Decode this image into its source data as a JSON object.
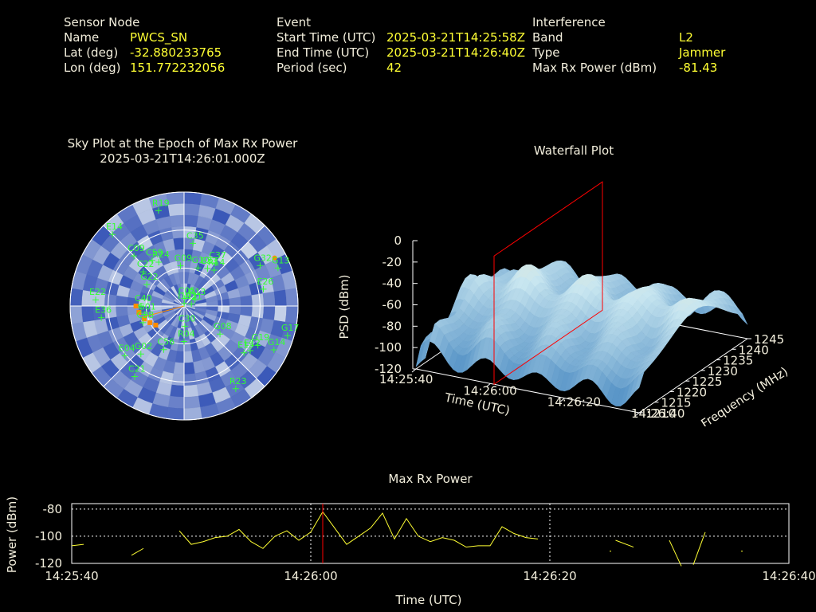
{
  "info": {
    "sensor": {
      "heading": "Sensor Node",
      "rows": [
        {
          "label": "Name",
          "value": "PWCS_SN"
        },
        {
          "label": "Lat (deg)",
          "value": "-32.880233765"
        },
        {
          "label": "Lon (deg)",
          "value": "151.772232056"
        }
      ]
    },
    "event": {
      "heading": "Event",
      "rows": [
        {
          "label": "Start Time (UTC)",
          "value": "2025-03-21T14:25:58Z"
        },
        {
          "label": "End Time (UTC)",
          "value": "2025-03-21T14:26:40Z"
        },
        {
          "label": "Period (sec)",
          "value": "42"
        }
      ]
    },
    "interference": {
      "heading": "Interference",
      "rows": [
        {
          "label": "Band",
          "value": "L2"
        },
        {
          "label": "Type",
          "value": "Jammer"
        },
        {
          "label": "Max Rx Power (dBm)",
          "value": "-81.43"
        }
      ]
    }
  },
  "colors": {
    "text": "#f2eedc",
    "value": "#ffff33",
    "satellite": "#33ff33",
    "track": "#ff8c00",
    "marker": "#ff0000",
    "sky_dark": "#3a58b8",
    "sky_light": "#dfe8f2"
  },
  "chart_data": [
    {
      "type": "scatter",
      "title": "Sky Plot at the Epoch of Max Rx Power",
      "subtitle": "2025-03-21T14:26:01.000Z",
      "satellites": [
        {
          "id": "I193",
          "az": 2,
          "el": 88
        },
        {
          "id": "C05",
          "az": 4,
          "el": 84
        },
        {
          "id": "E33",
          "az": 32,
          "el": 55
        },
        {
          "id": "R14",
          "az": 40,
          "el": 53
        },
        {
          "id": "G32",
          "az": 62,
          "el": 22
        },
        {
          "id": "G13",
          "az": 68,
          "el": 10
        },
        {
          "id": "E26",
          "az": 78,
          "el": 26
        },
        {
          "id": "G17",
          "az": 106,
          "el": 5
        },
        {
          "id": "G14",
          "az": 116,
          "el": 11
        },
        {
          "id": "G19",
          "az": 118,
          "el": 24
        },
        {
          "id": "E12",
          "az": 124,
          "el": 27
        },
        {
          "id": "E15",
          "az": 128,
          "el": 30
        },
        {
          "id": "R23",
          "az": 148,
          "el": 13
        },
        {
          "id": "R13",
          "az": 60,
          "el": 80
        },
        {
          "id": "R21",
          "az": 75,
          "el": 84
        },
        {
          "id": "G08",
          "az": 128,
          "el": 54
        },
        {
          "id": "R04",
          "az": 180,
          "el": 62
        },
        {
          "id": "C30",
          "az": 178,
          "el": 74
        },
        {
          "id": "C56",
          "az": 205,
          "el": 52
        },
        {
          "id": "E04",
          "az": 230,
          "el": 29
        },
        {
          "id": "C21",
          "az": 215,
          "el": 22
        },
        {
          "id": "G02",
          "az": 222,
          "el": 39
        },
        {
          "id": "C38",
          "az": 248,
          "el": 55
        },
        {
          "id": "G01",
          "az": 258,
          "el": 58
        },
        {
          "id": "C40",
          "az": 270,
          "el": 56
        },
        {
          "id": "E22",
          "az": 274,
          "el": 20
        },
        {
          "id": "E36",
          "az": 262,
          "el": 24
        },
        {
          "id": "C09",
          "az": 315,
          "el": 34
        },
        {
          "id": "C59",
          "az": 325,
          "el": 46
        },
        {
          "id": "G22",
          "az": 300,
          "el": 56
        },
        {
          "id": "C22",
          "az": 310,
          "el": 48
        },
        {
          "id": "R24",
          "az": 330,
          "el": 50
        },
        {
          "id": "R19",
          "az": 345,
          "el": 12
        },
        {
          "id": "E14",
          "az": 315,
          "el": 10
        },
        {
          "id": "G09",
          "az": 355,
          "el": 58
        },
        {
          "id": "G10",
          "az": 20,
          "el": 58
        },
        {
          "id": "C37",
          "az": 36,
          "el": 48
        },
        {
          "id": "C35",
          "az": 8,
          "el": 40
        }
      ],
      "track": [
        {
          "az": 270,
          "el": 52
        },
        {
          "az": 262,
          "el": 54
        },
        {
          "az": 252,
          "el": 57
        },
        {
          "az": 244,
          "el": 60
        },
        {
          "az": 236,
          "el": 63
        }
      ],
      "interferer": {
        "az": 62,
        "el": 9
      }
    },
    {
      "type": "area",
      "title": "Waterfall Plot",
      "xlabel": "Time (UTC)",
      "ylabel": "Frequency (MHz)",
      "zlabel": "PSD (dBm)",
      "x_ticks": [
        "14:25:40",
        "14:26:00",
        "14:26:20",
        "14:26:40"
      ],
      "y_ticks": [
        1210,
        1215,
        1220,
        1225,
        1230,
        1235,
        1240,
        1245
      ],
      "z_ticks": [
        0,
        -20,
        -40,
        -60,
        -80,
        -100,
        -120
      ],
      "zlim": [
        -120,
        0
      ],
      "marker_time": "14:26:01"
    },
    {
      "type": "line",
      "title": "Max Rx Power",
      "xlabel": "Time (UTC)",
      "ylabel": "Power (dBm)",
      "x_ticks": [
        "14:25:40",
        "14:26:00",
        "14:26:20",
        "14:26:40"
      ],
      "y_ticks": [
        -80,
        -100,
        -120
      ],
      "ylim": [
        -120,
        -76
      ],
      "xlim_sec": [
        0,
        60
      ],
      "marker_sec": 21,
      "segments": [
        [
          [
            0,
            -107
          ],
          [
            1,
            -106
          ]
        ],
        [
          [
            5,
            -114
          ],
          [
            6,
            -109
          ]
        ],
        [
          [
            9,
            -96
          ],
          [
            10,
            -106
          ],
          [
            11,
            -104
          ],
          [
            12,
            -101
          ],
          [
            13,
            -100
          ],
          [
            14,
            -95
          ],
          [
            15,
            -104
          ],
          [
            16,
            -109
          ],
          [
            17,
            -100
          ],
          [
            18,
            -96
          ],
          [
            19,
            -103
          ],
          [
            20,
            -97
          ],
          [
            21,
            -82
          ],
          [
            22,
            -94
          ],
          [
            23,
            -106
          ],
          [
            24,
            -100
          ],
          [
            25,
            -94
          ],
          [
            26,
            -83
          ],
          [
            27,
            -102
          ],
          [
            28,
            -87
          ],
          [
            29,
            -100
          ],
          [
            30,
            -104
          ],
          [
            31,
            -101
          ],
          [
            32,
            -103
          ],
          [
            33,
            -108
          ],
          [
            34,
            -107
          ],
          [
            35,
            -107
          ],
          [
            36,
            -93
          ],
          [
            37,
            -98
          ],
          [
            38,
            -101
          ],
          [
            39,
            -102
          ]
        ],
        [
          [
            45,
            -111
          ]
        ],
        [
          [
            45.5,
            -103
          ],
          [
            47,
            -108
          ]
        ],
        [
          [
            50,
            -103
          ],
          [
            51,
            -122
          ]
        ],
        [
          [
            52,
            -121
          ],
          [
            53,
            -97
          ]
        ],
        [
          [
            56,
            -111
          ]
        ]
      ]
    }
  ]
}
